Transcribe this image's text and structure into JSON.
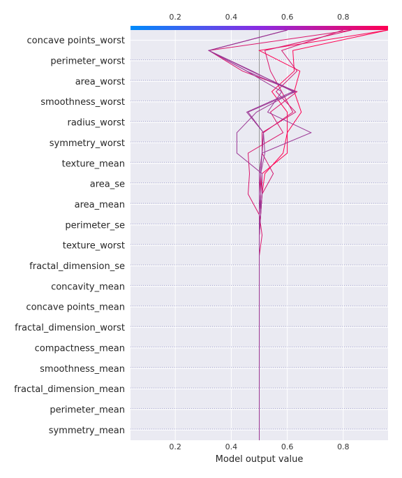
{
  "chart_data": {
    "type": "line",
    "xlabel": "Model output value",
    "xlim": [
      0.04,
      0.96
    ],
    "xticks": [
      0.2,
      0.4,
      0.6,
      0.8
    ],
    "base_value": 0.5,
    "colorbar": {
      "colors": [
        "#008bfb",
        "#ff0052"
      ],
      "ticks": [
        0.2,
        0.4,
        0.6,
        0.8
      ]
    },
    "features": [
      "concave points_worst",
      "perimeter_worst",
      "area_worst",
      "smoothness_worst",
      "radius_worst",
      "symmetry_worst",
      "texture_mean",
      "area_se",
      "area_mean",
      "perimeter_se",
      "texture_worst",
      "fractal_dimension_se",
      "concavity_mean",
      "concave points_mean",
      "fractal_dimension_worst",
      "compactness_mean",
      "smoothness_mean",
      "fractal_dimension_mean",
      "perimeter_mean",
      "symmetry_mean"
    ],
    "series": [
      {
        "final": 0.96,
        "values": [
          0.96,
          0.5,
          0.645,
          0.625,
          0.65,
          0.6,
          0.585,
          0.52,
          0.51,
          0.505,
          0.5,
          0.5,
          0.5,
          0.5,
          0.5,
          0.5,
          0.5,
          0.5,
          0.5,
          0.5,
          0.5
        ]
      },
      {
        "final": 0.96,
        "values": [
          0.96,
          0.62,
          0.625,
          0.545,
          0.6,
          0.6,
          0.6,
          0.51,
          0.505,
          0.5,
          0.5,
          0.5,
          0.5,
          0.5,
          0.5,
          0.5,
          0.5,
          0.5,
          0.5,
          0.5,
          0.5
        ]
      },
      {
        "final": 0.83,
        "values": [
          0.83,
          0.32,
          0.44,
          0.635,
          0.54,
          0.585,
          0.46,
          0.465,
          0.46,
          0.5,
          0.51,
          0.5,
          0.5,
          0.5,
          0.5,
          0.5,
          0.5,
          0.5,
          0.5,
          0.5,
          0.5
        ]
      },
      {
        "final": 0.8,
        "values": [
          0.8,
          0.58,
          0.635,
          0.56,
          0.63,
          0.51,
          0.51,
          0.55,
          0.51,
          0.505,
          0.5,
          0.5,
          0.5,
          0.5,
          0.5,
          0.5,
          0.5,
          0.5,
          0.5,
          0.5,
          0.5
        ]
      },
      {
        "final": 0.83,
        "values": [
          0.83,
          0.52,
          0.54,
          0.58,
          0.62,
          0.515,
          0.51,
          0.5,
          0.505,
          0.5,
          0.5,
          0.5,
          0.5,
          0.5,
          0.5,
          0.5,
          0.5,
          0.5,
          0.5,
          0.5,
          0.5
        ]
      },
      {
        "final": 0.6,
        "values": [
          0.6,
          0.32,
          0.475,
          0.62,
          0.455,
          0.515,
          0.52,
          0.505,
          0.505,
          0.505,
          0.5,
          0.5,
          0.5,
          0.5,
          0.5,
          0.5,
          0.5,
          0.5,
          0.5,
          0.5,
          0.5
        ]
      },
      {
        "final": 0.6,
        "values": [
          0.6,
          0.32,
          0.47,
          0.63,
          0.46,
          0.515,
          0.51,
          0.505,
          0.505,
          0.5,
          0.5,
          0.5,
          0.5,
          0.5,
          0.5,
          0.5,
          0.5,
          0.5,
          0.5,
          0.5,
          0.5
        ]
      },
      {
        "final": 0.6,
        "values": [
          0.6,
          0.32,
          0.455,
          0.625,
          0.49,
          0.42,
          0.42,
          0.51,
          0.51,
          0.505,
          0.5,
          0.5,
          0.5,
          0.5,
          0.5,
          0.5,
          0.5,
          0.5,
          0.5,
          0.5,
          0.5
        ]
      },
      {
        "final": 0.6,
        "values": [
          0.6,
          0.32,
          0.455,
          0.58,
          0.53,
          0.685,
          0.51,
          0.5,
          0.5,
          0.5,
          0.5,
          0.5,
          0.5,
          0.5,
          0.5,
          0.5,
          0.5,
          0.5,
          0.5,
          0.5,
          0.5
        ]
      }
    ]
  }
}
